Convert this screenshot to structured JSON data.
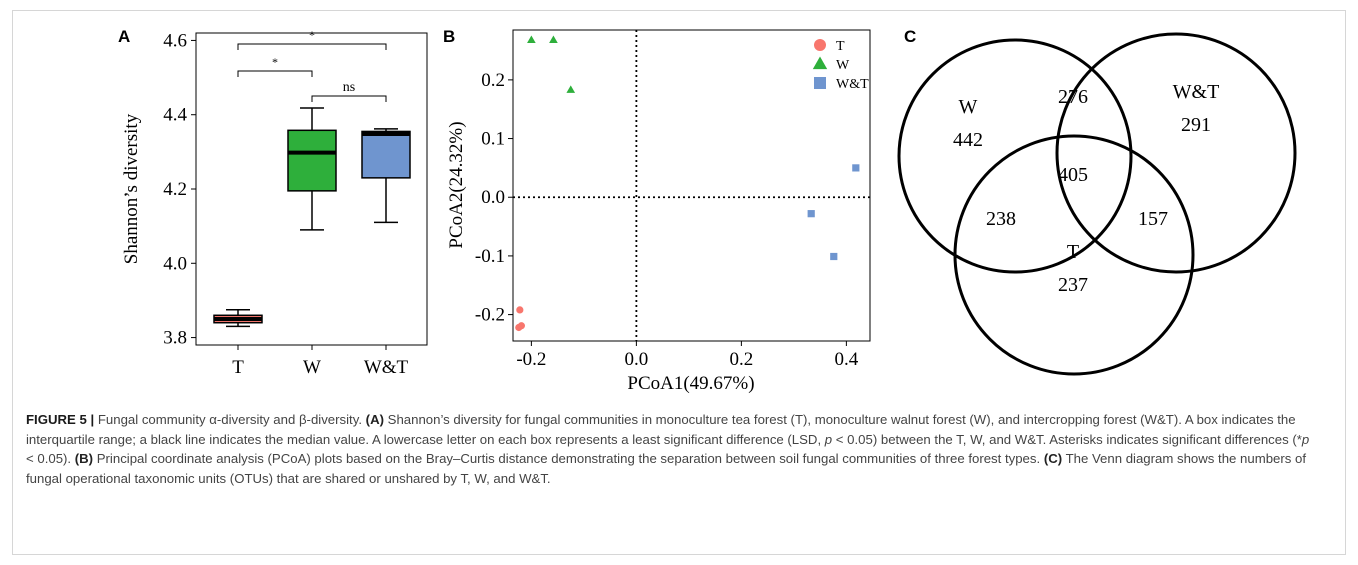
{
  "figure": {
    "panel_labels": [
      "A",
      "B",
      "C"
    ]
  },
  "chart_data": [
    {
      "type": "box",
      "panel": "A",
      "ylabel": "Shannon’s diversity",
      "xlabel": "",
      "ylim": [
        3.78,
        4.62
      ],
      "yticks": [
        3.8,
        4.0,
        4.2,
        4.4,
        4.6
      ],
      "categories": [
        "T",
        "W",
        "W&T"
      ],
      "boxes": [
        {
          "name": "T",
          "min": 3.83,
          "q1": 3.84,
          "median": 3.85,
          "q3": 3.86,
          "max": 3.875,
          "color": "#F8766D"
        },
        {
          "name": "W",
          "min": 4.09,
          "q1": 4.195,
          "median": 4.298,
          "q3": 4.358,
          "max": 4.418,
          "color": "#2EAF3B"
        },
        {
          "name": "W&T",
          "min": 4.11,
          "q1": 4.23,
          "median": 4.348,
          "q3": 4.355,
          "max": 4.362,
          "color": "#6F95CF"
        }
      ],
      "significance": [
        {
          "from": "T",
          "to": "W",
          "label": "*"
        },
        {
          "from": "T",
          "to": "W&T",
          "label": "*"
        },
        {
          "from": "W",
          "to": "W&T",
          "label": "ns"
        }
      ]
    },
    {
      "type": "scatter",
      "panel": "B",
      "xlabel": "PCoA1(49.67%)",
      "ylabel": "PCoA2(24.32%)",
      "xlim": [
        -0.235,
        0.445
      ],
      "ylim": [
        -0.245,
        0.285
      ],
      "xticks": [
        -0.2,
        0.0,
        0.2,
        0.4
      ],
      "yticks": [
        -0.2,
        -0.1,
        0.0,
        0.1,
        0.2
      ],
      "reference_lines": {
        "x": 0,
        "y": 0,
        "style": "dotted"
      },
      "legend_position": "top-right",
      "series": [
        {
          "name": "T",
          "marker": "circle",
          "color": "#F8766D",
          "points": [
            [
              -0.222,
              -0.192
            ],
            [
              -0.224,
              -0.222
            ],
            [
              -0.219,
              -0.219
            ]
          ]
        },
        {
          "name": "W",
          "marker": "triangle",
          "color": "#2EAF3B",
          "points": [
            [
              -0.2,
              0.268
            ],
            [
              -0.158,
              0.268
            ],
            [
              -0.125,
              0.183
            ]
          ]
        },
        {
          "name": "W&T",
          "marker": "square",
          "color": "#6F95CF",
          "points": [
            [
              0.418,
              0.05
            ],
            [
              0.333,
              -0.028
            ],
            [
              0.376,
              -0.101
            ]
          ]
        }
      ]
    },
    {
      "type": "venn",
      "panel": "C",
      "sets": [
        "W",
        "W&T",
        "T"
      ],
      "regions": {
        "W_only": 442,
        "WT_only": 291,
        "T_only": 237,
        "W_and_WT": 276,
        "W_and_T": 238,
        "WT_and_T": 157,
        "all": 405
      }
    }
  ],
  "caption": {
    "figure_label": "FIGURE 5 |",
    "s1": " Fungal community α-diversity and β-diversity. ",
    "a_label": "(A)",
    "s2": " Shannon’s diversity for fungal communities in monoculture tea forest (T), monoculture walnut forest (W), and intercropping forest (W&T). A box indicates the interquartile range; a black line indicates the median value. A lowercase letter on each box represents a least significant difference (LSD, ",
    "p1_symbol": "p",
    "s3": " < 0.05) between the T, W, and W&T. Asterisks indicates significant differences (*",
    "p2_symbol": "p",
    "s4": " < 0.05). ",
    "b_label": "(B)",
    "s5": " Principal coordinate analysis (PCoA) plots based on the Bray–Curtis distance demonstrating the separation between soil fungal communities of three forest types. ",
    "c_label": "(C)",
    "s6": " The Venn diagram shows the numbers of fungal operational taxonomic units (OTUs) that are shared or unshared by T, W, and W&T."
  }
}
